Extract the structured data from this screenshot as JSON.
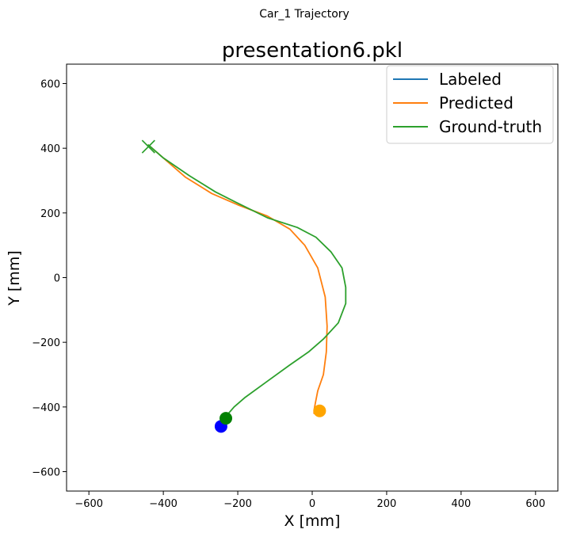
{
  "figure": {
    "suptitle": "Car_1 Trajectory"
  },
  "chart_data": {
    "type": "line",
    "title": "presentation6.pkl",
    "xlabel": "X [mm]",
    "ylabel": "Y [mm]",
    "xlim": [
      -660,
      660
    ],
    "ylim": [
      -660,
      660
    ],
    "xticks": [
      -600,
      -400,
      -200,
      0,
      200,
      400,
      600
    ],
    "yticks": [
      -600,
      -400,
      -200,
      0,
      200,
      400,
      600
    ],
    "xtick_labels": [
      "−600",
      "−400",
      "−200",
      "0",
      "200",
      "400",
      "600"
    ],
    "ytick_labels": [
      "−600",
      "−400",
      "−200",
      "0",
      "200",
      "400",
      "600"
    ],
    "grid": false,
    "legend": {
      "placement": "top-right",
      "entries": [
        "Labeled",
        "Predicted",
        "Ground-truth"
      ]
    },
    "series": [
      {
        "name": "Labeled",
        "color": "#1f77b4",
        "x": [],
        "y": []
      },
      {
        "name": "Predicted",
        "color": "#ff7f0e",
        "x": [
          -440,
          -400,
          -340,
          -270,
          -200,
          -120,
          -60,
          -20,
          15,
          35,
          40,
          38,
          30,
          15,
          8,
          5,
          5,
          10,
          20
        ],
        "y": [
          410,
          370,
          310,
          260,
          225,
          190,
          150,
          100,
          30,
          -60,
          -150,
          -230,
          -300,
          -350,
          -390,
          -410,
          -420,
          -418,
          -413
        ]
      },
      {
        "name": "Ground-truth",
        "color": "#2ca02c",
        "x": [
          -440,
          -400,
          -330,
          -260,
          -200,
          -120,
          -40,
          10,
          50,
          80,
          90,
          90,
          70,
          30,
          -10,
          -60,
          -120,
          -180,
          -210,
          -225,
          -233
        ],
        "y": [
          410,
          370,
          315,
          265,
          230,
          185,
          155,
          125,
          80,
          30,
          -30,
          -80,
          -140,
          -190,
          -230,
          -270,
          -320,
          -370,
          -400,
          -420,
          -435
        ]
      }
    ],
    "markers": [
      {
        "name": "Labeled start",
        "color": "#0000ff",
        "x": -245,
        "y": -460
      },
      {
        "name": "Predicted end",
        "color": "#ffa500",
        "x": 20,
        "y": -412
      },
      {
        "name": "Ground-truth end",
        "color": "#008000",
        "x": -232,
        "y": -435
      }
    ],
    "start_marker": {
      "symbol": "x",
      "color": "#2ca02c",
      "x": -440,
      "y": 405
    }
  }
}
